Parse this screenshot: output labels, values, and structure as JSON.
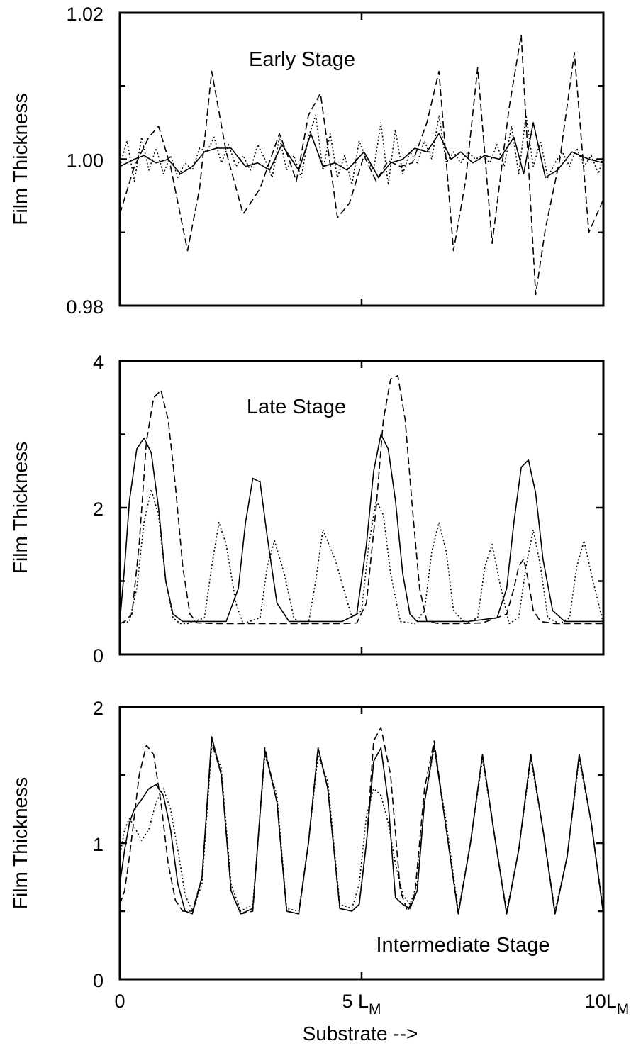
{
  "figure": {
    "xlabel": "Substrate -->",
    "ylabel": "Film Thickness",
    "x_ticks": [
      {
        "value": 0,
        "label": "0"
      },
      {
        "value": 5,
        "label": "5 L",
        "sub": "M"
      },
      {
        "value": 10,
        "label": "10L",
        "sub": "M"
      }
    ]
  },
  "chart_data": [
    {
      "type": "line",
      "title": "Early Stage",
      "xlabel": "Substrate -->",
      "ylabel": "Film Thickness",
      "xlim": [
        0,
        10
      ],
      "ylim": [
        0.98,
        1.02
      ],
      "y_tick_labels": [
        "0.98",
        "1.00",
        "1.02"
      ],
      "y_ticks": [
        0.98,
        1.0,
        1.02
      ],
      "y_minor_ticks": [
        0.99,
        1.01
      ],
      "x_ticks": [
        0,
        5,
        10
      ],
      "series": [
        {
          "style": "dashed",
          "x": [
            0,
            0.3,
            0.6,
            0.8,
            1.05,
            1.4,
            1.65,
            1.9,
            2.2,
            2.55,
            2.9,
            3.3,
            3.5,
            3.65,
            3.9,
            4.15,
            4.5,
            4.75,
            5.05,
            5.3,
            5.55,
            5.8,
            6.05,
            6.35,
            6.6,
            6.9,
            7.15,
            7.4,
            7.7,
            8.05,
            8.3,
            8.6,
            8.8,
            9.1,
            9.4,
            9.7,
            10
          ],
          "y": [
            0.9925,
            0.999,
            1.003,
            1.0045,
            0.999,
            0.9875,
            0.996,
            1.012,
            1.001,
            0.9925,
            0.996,
            1.0035,
            1.0,
            0.997,
            1.006,
            1.009,
            0.992,
            0.994,
            1.0005,
            0.997,
            0.9998,
            0.999,
            0.9995,
            1.005,
            1.012,
            0.9875,
            0.997,
            1.0125,
            0.9885,
            1.007,
            1.017,
            0.9815,
            0.9905,
            1.0,
            1.0145,
            0.99,
            0.9945
          ]
        },
        {
          "style": "solid",
          "x": [
            0,
            0.3,
            0.5,
            0.75,
            1.0,
            1.25,
            1.5,
            1.75,
            2.0,
            2.3,
            2.6,
            2.85,
            3.1,
            3.35,
            3.7,
            3.95,
            4.2,
            4.45,
            4.7,
            5.05,
            5.35,
            5.6,
            5.85,
            6.1,
            6.35,
            6.6,
            6.85,
            7.05,
            7.3,
            7.55,
            7.85,
            8.15,
            8.35,
            8.55,
            8.8,
            9.05,
            9.35,
            9.7,
            10
          ],
          "y": [
            0.999,
            1.0,
            1.0005,
            0.9995,
            1.0,
            0.998,
            0.999,
            1.001,
            1.0015,
            1.0015,
            0.999,
            0.9995,
            0.9985,
            1.002,
            0.9985,
            1.0035,
            0.999,
            0.9995,
            0.9985,
            1.001,
            0.9975,
            0.9995,
            1.0,
            1.0015,
            1.001,
            1.0035,
            1.0,
            1.001,
            0.9995,
            1.0005,
            1.0,
            1.003,
            0.998,
            1.005,
            0.9975,
            0.9985,
            1.001,
            1.0,
            0.9995
          ]
        },
        {
          "style": "dotted",
          "x": [
            0,
            0.15,
            0.3,
            0.45,
            0.6,
            0.75,
            0.9,
            1.05,
            1.2,
            1.35,
            1.5,
            1.65,
            1.8,
            1.95,
            2.1,
            2.25,
            2.4,
            2.55,
            2.7,
            2.85,
            3.0,
            3.15,
            3.3,
            3.45,
            3.6,
            3.75,
            3.9,
            4.05,
            4.2,
            4.35,
            4.5,
            4.65,
            4.8,
            4.95,
            5.1,
            5.25,
            5.4,
            5.55,
            5.7,
            5.85,
            6.0,
            6.15,
            6.3,
            6.45,
            6.6,
            6.75,
            6.9,
            7.05,
            7.2,
            7.35,
            7.5,
            7.65,
            7.8,
            7.95,
            8.1,
            8.25,
            8.4,
            8.55,
            8.7,
            8.85,
            9.0,
            9.15,
            9.3,
            9.45,
            9.6,
            9.75,
            9.9,
            10
          ],
          "y": [
            0.999,
            1.0025,
            0.997,
            1.003,
            0.9985,
            1.0015,
            0.998,
            1.0005,
            0.9975,
            0.9995,
            0.9985,
            1.0015,
            1.001,
            1.003,
            0.9995,
            1.002,
            0.999,
            1.0005,
            0.9985,
            1.002,
            1.0,
            0.9975,
            1.003,
            0.9985,
            1.0005,
            0.9975,
            1.003,
            1.006,
            0.9985,
            1.0035,
            0.9975,
            1.0005,
            0.9965,
            1.0025,
            1.0,
            0.9985,
            1.005,
            0.9965,
            1.004,
            0.998,
            1.001,
            0.9995,
            1.0025,
            1.0,
            1.006,
            0.9995,
            1.001,
            0.9995,
            1.001,
            1.0,
            1.0005,
            0.9995,
            1.002,
            0.999,
            1.0045,
            0.998,
            1.006,
            0.999,
            1.0025,
            0.9975,
            0.9995,
            1.001,
            0.999,
            1.0015,
            0.999,
            1.0005,
            0.998,
            1.0005
          ]
        }
      ]
    },
    {
      "type": "line",
      "title": "Late Stage",
      "xlabel": "Substrate -->",
      "ylabel": "Film Thickness",
      "xlim": [
        0,
        10
      ],
      "ylim": [
        0,
        4
      ],
      "y_tick_labels": [
        "0",
        "2",
        "4"
      ],
      "y_ticks": [
        0,
        2,
        4
      ],
      "y_minor_ticks": [
        1,
        3
      ],
      "x_ticks": [
        0,
        5,
        10
      ],
      "series": [
        {
          "style": "dashed",
          "x": [
            0,
            0.1,
            0.25,
            0.4,
            0.55,
            0.7,
            0.85,
            1.0,
            1.15,
            1.3,
            1.45,
            1.6,
            2.0,
            3.0,
            4.0,
            4.6,
            4.9,
            5.1,
            5.3,
            5.45,
            5.6,
            5.75,
            5.9,
            6.05,
            6.2,
            6.35,
            6.6,
            7.0,
            7.5,
            8.0,
            8.15,
            8.25,
            8.35,
            8.45,
            8.55,
            8.7,
            9.0,
            10
          ],
          "y": [
            0.42,
            0.45,
            0.55,
            1.5,
            2.9,
            3.5,
            3.6,
            3.2,
            2.3,
            1.2,
            0.55,
            0.43,
            0.42,
            0.42,
            0.42,
            0.42,
            0.43,
            0.7,
            2.0,
            3.2,
            3.75,
            3.8,
            3.2,
            2.0,
            0.9,
            0.45,
            0.42,
            0.42,
            0.43,
            0.55,
            0.9,
            1.2,
            1.3,
            1.0,
            0.6,
            0.45,
            0.42,
            0.42
          ]
        },
        {
          "style": "solid",
          "x": [
            0,
            0.1,
            0.2,
            0.35,
            0.5,
            0.65,
            0.8,
            0.95,
            1.1,
            1.3,
            1.5,
            2.2,
            2.45,
            2.6,
            2.75,
            2.9,
            3.05,
            3.25,
            3.5,
            4.6,
            4.9,
            5.1,
            5.25,
            5.4,
            5.55,
            5.7,
            5.85,
            6.0,
            6.15,
            6.3,
            7.2,
            7.8,
            8.0,
            8.15,
            8.3,
            8.45,
            8.6,
            8.75,
            8.95,
            9.2,
            10
          ],
          "y": [
            0.45,
            1.2,
            2.1,
            2.8,
            2.95,
            2.75,
            2.0,
            1.0,
            0.55,
            0.45,
            0.45,
            0.45,
            0.9,
            1.8,
            2.4,
            2.35,
            1.6,
            0.7,
            0.45,
            0.45,
            0.55,
            1.5,
            2.5,
            3.0,
            2.8,
            2.1,
            1.1,
            0.55,
            0.45,
            0.45,
            0.45,
            0.5,
            0.9,
            1.8,
            2.55,
            2.65,
            2.2,
            1.3,
            0.6,
            0.45,
            0.45
          ]
        },
        {
          "style": "dotted",
          "x": [
            0,
            0.2,
            0.35,
            0.5,
            0.65,
            0.8,
            0.95,
            1.1,
            1.25,
            1.4,
            1.75,
            1.9,
            2.05,
            2.2,
            2.4,
            2.55,
            2.9,
            3.05,
            3.2,
            3.4,
            3.6,
            3.75,
            3.9,
            4.05,
            4.2,
            4.45,
            4.8,
            5.0,
            5.15,
            5.3,
            5.45,
            5.6,
            5.8,
            6.1,
            6.3,
            6.45,
            6.6,
            6.75,
            6.9,
            7.15,
            7.4,
            7.55,
            7.7,
            7.85,
            8.05,
            8.25,
            8.4,
            8.55,
            8.7,
            8.85,
            9.1,
            9.3,
            9.45,
            9.6,
            9.75,
            10
          ],
          "y": [
            0.42,
            0.45,
            0.9,
            1.8,
            2.25,
            1.9,
            1.0,
            0.5,
            0.42,
            0.42,
            0.5,
            1.2,
            1.8,
            1.5,
            0.7,
            0.42,
            0.5,
            1.2,
            1.55,
            1.1,
            0.5,
            0.42,
            0.42,
            1.0,
            1.7,
            1.3,
            0.5,
            0.6,
            1.5,
            2.1,
            1.9,
            1.1,
            0.45,
            0.42,
            0.6,
            1.4,
            1.8,
            1.4,
            0.6,
            0.42,
            0.5,
            1.2,
            1.5,
            1.0,
            0.42,
            0.5,
            1.2,
            1.7,
            1.2,
            0.5,
            0.42,
            0.5,
            1.2,
            1.55,
            1.1,
            0.42
          ]
        }
      ]
    },
    {
      "type": "line",
      "title": "Intermediate Stage",
      "xlabel": "Substrate -->",
      "ylabel": "Film Thickness",
      "xlim": [
        0,
        10
      ],
      "ylim": [
        0,
        2
      ],
      "y_tick_labels": [
        "0",
        "1",
        "2"
      ],
      "y_ticks": [
        0,
        1,
        2
      ],
      "y_minor_ticks": [
        0.5,
        1.5
      ],
      "x_ticks": [
        0,
        5,
        10
      ],
      "series": [
        {
          "style": "dashed",
          "x": [
            0,
            0.1,
            0.2,
            0.3,
            0.4,
            0.55,
            0.7,
            0.85,
            1.0,
            1.15,
            1.3,
            1.5,
            1.7,
            1.9,
            2.1,
            2.3,
            2.5,
            2.75,
            3.0,
            3.25,
            3.45,
            3.7,
            3.9,
            4.1,
            4.3,
            4.55,
            4.8,
            4.95,
            5.1,
            5.25,
            5.4,
            5.6,
            5.8,
            5.95,
            6.1,
            6.3,
            6.5,
            6.75,
            7.0,
            7.25,
            7.5,
            7.75,
            8.0,
            8.25,
            8.5,
            8.75,
            9.0,
            9.25,
            9.5,
            9.75,
            10
          ],
          "y": [
            0.55,
            0.65,
            0.9,
            1.2,
            1.5,
            1.72,
            1.65,
            1.3,
            0.85,
            0.58,
            0.5,
            0.5,
            0.75,
            1.75,
            1.5,
            0.65,
            0.48,
            0.5,
            1.7,
            1.3,
            0.5,
            0.48,
            1.0,
            1.7,
            1.4,
            0.52,
            0.5,
            0.55,
            1.0,
            1.75,
            1.85,
            1.5,
            0.65,
            0.5,
            0.62,
            1.4,
            1.75,
            1.1,
            0.48,
            1.0,
            1.65,
            1.05,
            0.48,
            0.95,
            1.65,
            1.1,
            0.48,
            0.9,
            1.65,
            1.15,
            0.48
          ]
        },
        {
          "style": "solid",
          "x": [
            0,
            0.1,
            0.2,
            0.3,
            0.45,
            0.6,
            0.75,
            0.9,
            1.05,
            1.2,
            1.35,
            1.5,
            1.7,
            1.9,
            2.1,
            2.3,
            2.5,
            2.75,
            3.0,
            3.25,
            3.45,
            3.7,
            3.9,
            4.1,
            4.3,
            4.55,
            4.8,
            4.95,
            5.1,
            5.25,
            5.4,
            5.55,
            5.7,
            5.85,
            6.0,
            6.15,
            6.3,
            6.5,
            6.75,
            7.0,
            7.25,
            7.5,
            7.75,
            8.0,
            8.25,
            8.5,
            8.75,
            9.0,
            9.25,
            9.5,
            9.75,
            10
          ],
          "y": [
            0.7,
            0.95,
            1.15,
            1.25,
            1.32,
            1.4,
            1.43,
            1.35,
            1.1,
            0.7,
            0.5,
            0.48,
            0.75,
            1.78,
            1.5,
            0.65,
            0.48,
            0.52,
            1.68,
            1.3,
            0.5,
            0.48,
            1.0,
            1.7,
            1.4,
            0.52,
            0.5,
            0.55,
            1.0,
            1.6,
            1.7,
            1.3,
            0.6,
            0.55,
            0.52,
            0.65,
            1.3,
            1.72,
            1.1,
            0.48,
            1.0,
            1.65,
            1.05,
            0.48,
            0.95,
            1.65,
            1.1,
            0.48,
            0.9,
            1.65,
            1.15,
            0.48
          ]
        },
        {
          "style": "dotted",
          "x": [
            0,
            0.1,
            0.2,
            0.3,
            0.45,
            0.6,
            0.75,
            0.9,
            1.05,
            1.2,
            1.35,
            1.5,
            1.7,
            1.9,
            2.1,
            2.3,
            2.5,
            2.75,
            3.0,
            3.25,
            3.45,
            3.7,
            3.9,
            4.1,
            4.3,
            4.55,
            4.8,
            4.95,
            5.1,
            5.25,
            5.4,
            5.55,
            5.7,
            5.85,
            6.0,
            6.15,
            6.3,
            6.5,
            6.75,
            7.0,
            7.25,
            7.5,
            7.75,
            8.0,
            8.25,
            8.5,
            8.75,
            9.0,
            9.25,
            9.5,
            9.75,
            10
          ],
          "y": [
            0.9,
            1.1,
            1.18,
            1.12,
            1.02,
            1.1,
            1.3,
            1.4,
            1.25,
            0.95,
            0.62,
            0.5,
            0.7,
            1.72,
            1.55,
            0.7,
            0.5,
            0.55,
            1.65,
            1.35,
            0.52,
            0.5,
            1.0,
            1.65,
            1.45,
            0.55,
            0.52,
            0.7,
            1.2,
            1.4,
            1.35,
            1.15,
            0.85,
            0.62,
            0.55,
            0.7,
            1.3,
            1.7,
            1.15,
            0.5,
            1.0,
            1.62,
            1.05,
            0.5,
            0.95,
            1.62,
            1.1,
            0.5,
            0.9,
            1.62,
            1.15,
            0.5
          ]
        }
      ]
    }
  ]
}
